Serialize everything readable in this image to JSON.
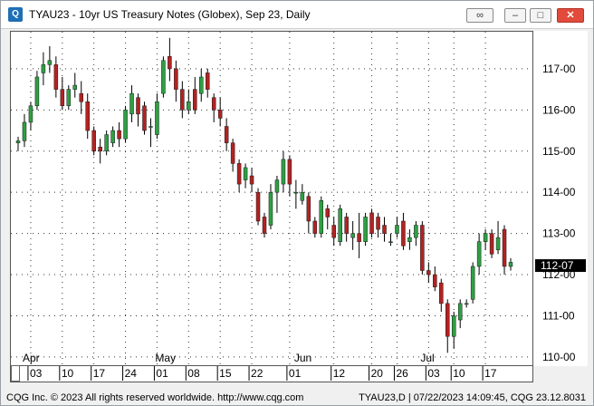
{
  "window": {
    "title": "TYAU23 - 10yr US Treasury Notes (Globex), Sep 23, Daily",
    "icon": "cqg-app-icon",
    "buttons": [
      "link-icon",
      "minimize-icon",
      "maximize-icon",
      "close-icon"
    ]
  },
  "status": {
    "left": "CQG Inc. © 2023 All rights reserved worldwide. http://www.cqg.com",
    "right": "TYAU23,D | 07/22/2023 14:09:45, CQG 23.12.8031"
  },
  "colors": {
    "up": "#2ea043",
    "down": "#b22222",
    "wick": "#000000",
    "grid_dot": "#333333",
    "last_price_bg": "#000000"
  },
  "chart_data": {
    "type": "candlestick",
    "grid": "dotted",
    "y_tick_labels": [
      "117-00",
      "116-00",
      "115-00",
      "114-00",
      "113-00",
      "112-00",
      "111-00",
      "110-00"
    ],
    "y_ticks": [
      117,
      116,
      115,
      114,
      113,
      112,
      111,
      110
    ],
    "ylim": [
      109.8,
      117.9
    ],
    "last_price_label": "112-07",
    "last_price": 112.22,
    "month_labels": [
      {
        "label": "Apr",
        "index": 2
      },
      {
        "label": "May",
        "index": 23
      },
      {
        "label": "Jun",
        "index": 45
      },
      {
        "label": "Jul",
        "index": 65
      }
    ],
    "day_labels": [
      {
        "label": "03",
        "index": 2
      },
      {
        "label": "10",
        "index": 7
      },
      {
        "label": "17",
        "index": 12
      },
      {
        "label": "24",
        "index": 17
      },
      {
        "label": "01",
        "index": 22
      },
      {
        "label": "08",
        "index": 27
      },
      {
        "label": "15",
        "index": 32
      },
      {
        "label": "22",
        "index": 37
      },
      {
        "label": "01",
        "index": 43
      },
      {
        "label": "12",
        "index": 50
      },
      {
        "label": "20",
        "index": 56
      },
      {
        "label": "26",
        "index": 60
      },
      {
        "label": "03",
        "index": 65
      },
      {
        "label": "10",
        "index": 69
      },
      {
        "label": "17",
        "index": 74
      }
    ],
    "candles": [
      [
        115.2,
        115.25,
        115.0,
        115.35
      ],
      [
        115.25,
        115.7,
        115.1,
        115.9
      ],
      [
        115.7,
        116.1,
        115.5,
        116.2
      ],
      [
        116.1,
        116.8,
        116.0,
        116.95
      ],
      [
        116.9,
        117.1,
        116.6,
        117.4
      ],
      [
        117.1,
        117.2,
        116.9,
        117.55
      ],
      [
        117.1,
        116.5,
        116.3,
        117.3
      ],
      [
        116.5,
        116.1,
        116.0,
        116.8
      ],
      [
        116.1,
        116.5,
        116.0,
        116.6
      ],
      [
        116.5,
        116.6,
        116.3,
        116.9
      ],
      [
        116.4,
        116.2,
        115.9,
        116.7
      ],
      [
        116.2,
        115.5,
        115.3,
        116.4
      ],
      [
        115.5,
        115.0,
        114.9,
        115.6
      ],
      [
        115.1,
        115.0,
        114.7,
        115.3
      ],
      [
        115.0,
        115.4,
        114.9,
        115.5
      ],
      [
        115.2,
        115.5,
        115.1,
        115.6
      ],
      [
        115.5,
        115.3,
        115.1,
        115.7
      ],
      [
        115.3,
        116.0,
        115.2,
        116.1
      ],
      [
        115.9,
        116.4,
        115.7,
        116.6
      ],
      [
        116.3,
        115.9,
        115.6,
        116.4
      ],
      [
        116.1,
        115.5,
        115.4,
        116.2
      ],
      [
        115.6,
        115.6,
        115.1,
        115.8
      ],
      [
        115.4,
        116.2,
        115.3,
        116.4
      ],
      [
        116.4,
        117.2,
        116.3,
        117.3
      ],
      [
        117.3,
        117.0,
        116.7,
        117.75
      ],
      [
        117.0,
        116.5,
        116.2,
        117.2
      ],
      [
        116.5,
        116.0,
        115.8,
        116.7
      ],
      [
        116.0,
        116.2,
        115.9,
        116.5
      ],
      [
        116.5,
        116.0,
        115.9,
        116.8
      ],
      [
        116.4,
        116.8,
        116.2,
        117.0
      ],
      [
        116.9,
        116.5,
        116.3,
        117.0
      ],
      [
        116.3,
        116.0,
        115.7,
        116.4
      ],
      [
        116.0,
        115.8,
        115.6,
        116.3
      ],
      [
        115.6,
        115.2,
        115.0,
        115.8
      ],
      [
        115.2,
        114.7,
        114.5,
        115.3
      ],
      [
        114.7,
        114.2,
        114.0,
        114.8
      ],
      [
        114.3,
        114.6,
        114.1,
        114.7
      ],
      [
        114.4,
        114.2,
        114.0,
        114.6
      ],
      [
        114.0,
        113.3,
        113.2,
        114.1
      ],
      [
        113.4,
        113.0,
        112.9,
        113.5
      ],
      [
        113.2,
        114.0,
        113.1,
        114.2
      ],
      [
        114.0,
        114.3,
        113.5,
        114.4
      ],
      [
        114.2,
        114.8,
        114.0,
        115.0
      ],
      [
        114.8,
        114.2,
        113.9,
        114.9
      ],
      [
        114.0,
        114.0,
        113.6,
        114.3
      ],
      [
        113.8,
        114.0,
        113.7,
        114.2
      ],
      [
        113.9,
        113.3,
        113.0,
        114.0
      ],
      [
        113.3,
        113.0,
        112.9,
        113.4
      ],
      [
        113.0,
        113.8,
        112.9,
        113.9
      ],
      [
        113.6,
        113.4,
        113.1,
        113.7
      ],
      [
        113.2,
        112.9,
        112.7,
        113.4
      ],
      [
        112.8,
        113.6,
        112.7,
        113.7
      ],
      [
        113.4,
        113.0,
        112.8,
        113.5
      ],
      [
        112.9,
        113.0,
        112.6,
        113.3
      ],
      [
        113.0,
        112.8,
        112.4,
        113.5
      ],
      [
        112.8,
        113.4,
        112.7,
        113.5
      ],
      [
        113.5,
        113.0,
        112.9,
        113.6
      ],
      [
        113.4,
        113.1,
        112.9,
        113.5
      ],
      [
        113.2,
        113.0,
        112.8,
        113.4
      ],
      [
        112.8,
        112.8,
        112.7,
        113.0
      ],
      [
        113.0,
        113.2,
        112.9,
        113.4
      ],
      [
        113.3,
        112.7,
        112.6,
        113.5
      ],
      [
        112.8,
        112.9,
        112.6,
        113.1
      ],
      [
        112.9,
        113.2,
        112.7,
        113.3
      ],
      [
        113.2,
        112.1,
        112.0,
        113.3
      ],
      [
        112.1,
        112.0,
        111.8,
        112.3
      ],
      [
        112.0,
        111.7,
        111.6,
        112.2
      ],
      [
        111.8,
        111.3,
        111.1,
        111.9
      ],
      [
        111.3,
        110.5,
        110.1,
        111.4
      ],
      [
        110.5,
        111.0,
        110.2,
        111.1
      ],
      [
        110.9,
        111.3,
        110.7,
        111.4
      ],
      [
        111.3,
        111.3,
        111.2,
        111.4
      ],
      [
        111.4,
        112.2,
        111.3,
        112.3
      ],
      [
        112.2,
        112.8,
        112.0,
        113.0
      ],
      [
        112.8,
        113.0,
        112.6,
        113.1
      ],
      [
        113.0,
        112.5,
        112.4,
        113.1
      ],
      [
        112.6,
        112.9,
        112.5,
        113.3
      ],
      [
        113.1,
        112.2,
        112.0,
        113.2
      ],
      [
        112.2,
        112.3,
        112.1,
        112.4
      ]
    ]
  }
}
